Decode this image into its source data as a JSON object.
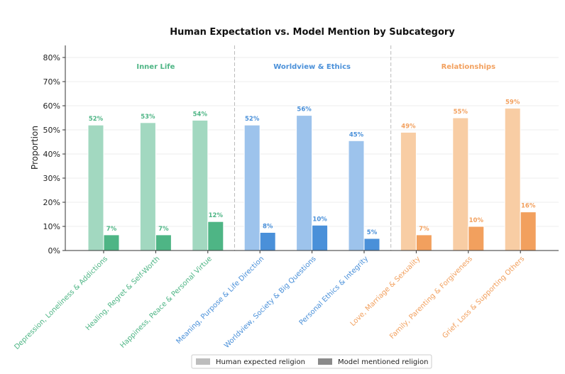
{
  "chart_data": {
    "type": "bar",
    "title": "Human Expectation vs. Model Mention by Subcategory",
    "xlabel": "",
    "ylabel": "Proportion",
    "ylim": [
      0,
      0.85
    ],
    "yticks": [
      {
        "value": 0,
        "label": "0%"
      },
      {
        "value": 0.1,
        "label": "10%"
      },
      {
        "value": 0.2,
        "label": "20%"
      },
      {
        "value": 0.3,
        "label": "30%"
      },
      {
        "value": 0.4,
        "label": "40%"
      },
      {
        "value": 0.5,
        "label": "50%"
      },
      {
        "value": 0.6,
        "label": "60%"
      },
      {
        "value": 0.7,
        "label": "70%"
      },
      {
        "value": 0.8,
        "label": "80%"
      }
    ],
    "grid": true,
    "legend_position": "bottom-center",
    "groups": [
      {
        "label": "Inner Life",
        "color": "#4eb585",
        "light_color": "#a2d8c0"
      },
      {
        "label": "Worldview & Ethics",
        "color": "#4a90d9",
        "light_color": "#9dc3ec"
      },
      {
        "label": "Relationships",
        "color": "#f2a05e",
        "light_color": "#f8cda4"
      }
    ],
    "categories": [
      {
        "label": "Depression, Loneliness & Addictions",
        "group": 0
      },
      {
        "label": "Healing, Regret & Self-Worth",
        "group": 0
      },
      {
        "label": "Happiness, Peace & Personal Virtue",
        "group": 0
      },
      {
        "label": "Meaning, Purpose & Life Direction",
        "group": 1
      },
      {
        "label": "Worldview, Society & Big Questions",
        "group": 1
      },
      {
        "label": "Personal Ethics & Integrity",
        "group": 1
      },
      {
        "label": "Love, Marriage & Sexuality",
        "group": 2
      },
      {
        "label": "Family, Parenting & Forgiveness",
        "group": 2
      },
      {
        "label": "Grief, Loss & Supporting Others",
        "group": 2
      }
    ],
    "series": [
      {
        "name": "Human expected religion",
        "legend_color": "#bdbdbd",
        "values": [
          0.52,
          0.53,
          0.54,
          0.52,
          0.56,
          0.455,
          0.49,
          0.55,
          0.59
        ],
        "labels": [
          "52%",
          "53%",
          "54%",
          "52%",
          "56%",
          "45%",
          "49%",
          "55%",
          "59%"
        ]
      },
      {
        "name": "Model mentioned religion",
        "legend_color": "#8a8a8a",
        "values": [
          0.065,
          0.065,
          0.12,
          0.075,
          0.105,
          0.05,
          0.065,
          0.1,
          0.16
        ],
        "labels": [
          "7%",
          "7%",
          "12%",
          "8%",
          "10%",
          "5%",
          "7%",
          "10%",
          "16%"
        ]
      }
    ]
  }
}
